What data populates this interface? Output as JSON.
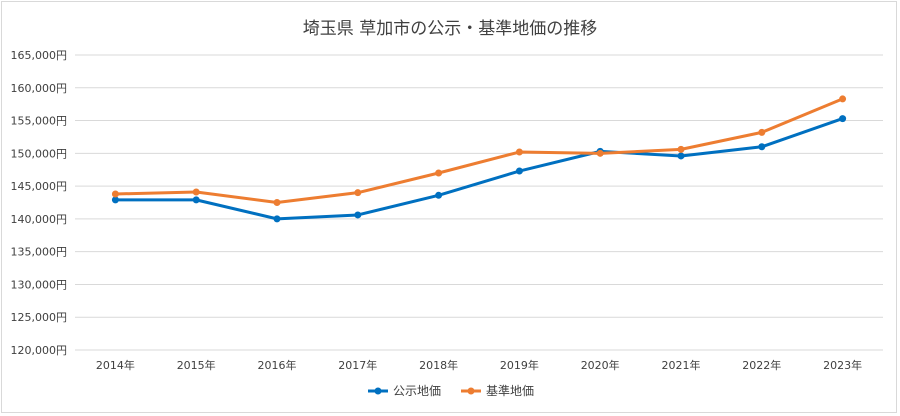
{
  "chart_data": {
    "type": "line",
    "title": "埼玉県 草加市の公示・基準地価の推移",
    "categories": [
      "2014年",
      "2015年",
      "2016年",
      "2017年",
      "2018年",
      "2019年",
      "2020年",
      "2021年",
      "2022年",
      "2023年"
    ],
    "series": [
      {
        "name": "公示地価",
        "color": "#0070c0",
        "values": [
          142900,
          142900,
          140000,
          140600,
          143600,
          147300,
          150300,
          149600,
          151000,
          155300
        ]
      },
      {
        "name": "基準地価",
        "color": "#ed7d31",
        "values": [
          143800,
          144100,
          142500,
          144000,
          147000,
          150200,
          150000,
          150600,
          153200,
          158300
        ]
      }
    ],
    "y_ticks": [
      "120,000円",
      "125,000円",
      "130,000円",
      "135,000円",
      "140,000円",
      "145,000円",
      "150,000円",
      "155,000円",
      "160,000円",
      "165,000円"
    ],
    "ylim": [
      120000,
      165000
    ],
    "grid": true,
    "legend_position": "bottom"
  }
}
